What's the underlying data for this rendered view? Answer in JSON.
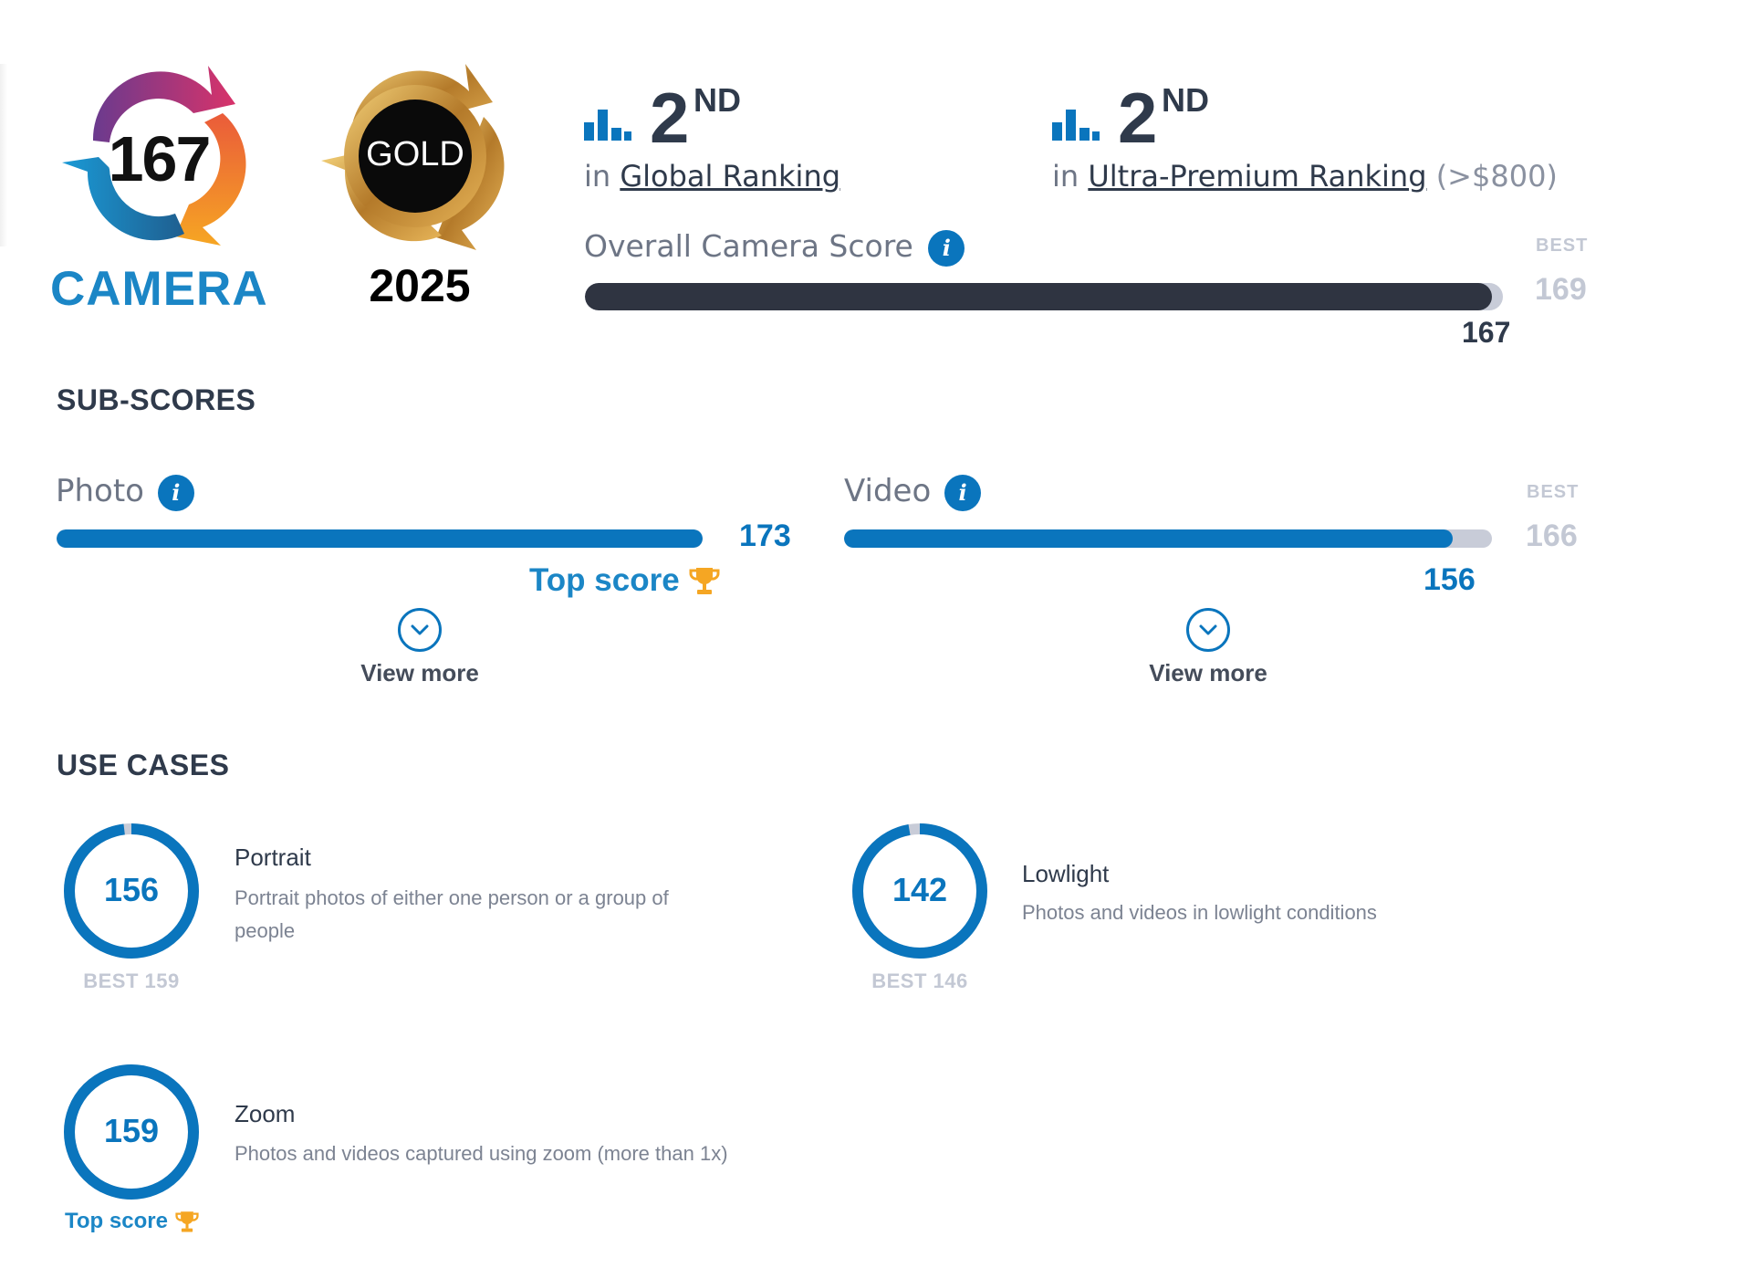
{
  "badges": {
    "camera": {
      "score": "167",
      "label": "CAMERA"
    },
    "gold": {
      "text": "GOLD",
      "year": "2025"
    }
  },
  "rankings": [
    {
      "position": "2",
      "suffix": "ND",
      "prefix": "in",
      "link": "Global Ranking",
      "extra": ""
    },
    {
      "position": "2",
      "suffix": "ND",
      "prefix": "in",
      "link": "Ultra-Premium Ranking",
      "extra": "(>$800)"
    }
  ],
  "overall": {
    "label": "Overall Camera Score",
    "score": "167",
    "score_value": 167,
    "best_label": "BEST",
    "best": "169",
    "best_value": 169,
    "info_icon": "i"
  },
  "sub_scores": {
    "title": "SUB-SCORES",
    "photo": {
      "label": "Photo",
      "score": "173",
      "score_value": 173,
      "max_value": 173,
      "top_score_label": "Top score",
      "view_more": "View more"
    },
    "video": {
      "label": "Video",
      "score": "156",
      "score_value": 156,
      "best_label": "BEST",
      "best": "166",
      "best_value": 166,
      "view_more": "View more"
    }
  },
  "use_cases": {
    "title": "USE CASES",
    "portrait": {
      "score": "156",
      "score_value": 156,
      "best_value": 159,
      "best_text": "BEST 159",
      "title": "Portrait",
      "desc_line1": "Portrait photos of either one person or a group of",
      "desc_line2": "people"
    },
    "lowlight": {
      "score": "142",
      "score_value": 142,
      "best_value": 146,
      "best_text": "BEST 146",
      "title": "Lowlight",
      "desc": "Photos and videos in lowlight conditions"
    },
    "zoom": {
      "score": "159",
      "score_value": 159,
      "best_value": 159,
      "top_score_label": "Top score",
      "title": "Zoom",
      "desc": "Photos and videos captured using zoom (more than 1x)"
    }
  },
  "colors": {
    "accent": "#0a75bd",
    "dark_bar": "#2f3441",
    "track": "#c8ccd8",
    "trophy": "#f5a623"
  },
  "icons": {
    "ranking": "bar-chart-icon",
    "info": "info-icon",
    "trophy": "trophy-icon",
    "chevron": "chevron-down-icon"
  }
}
